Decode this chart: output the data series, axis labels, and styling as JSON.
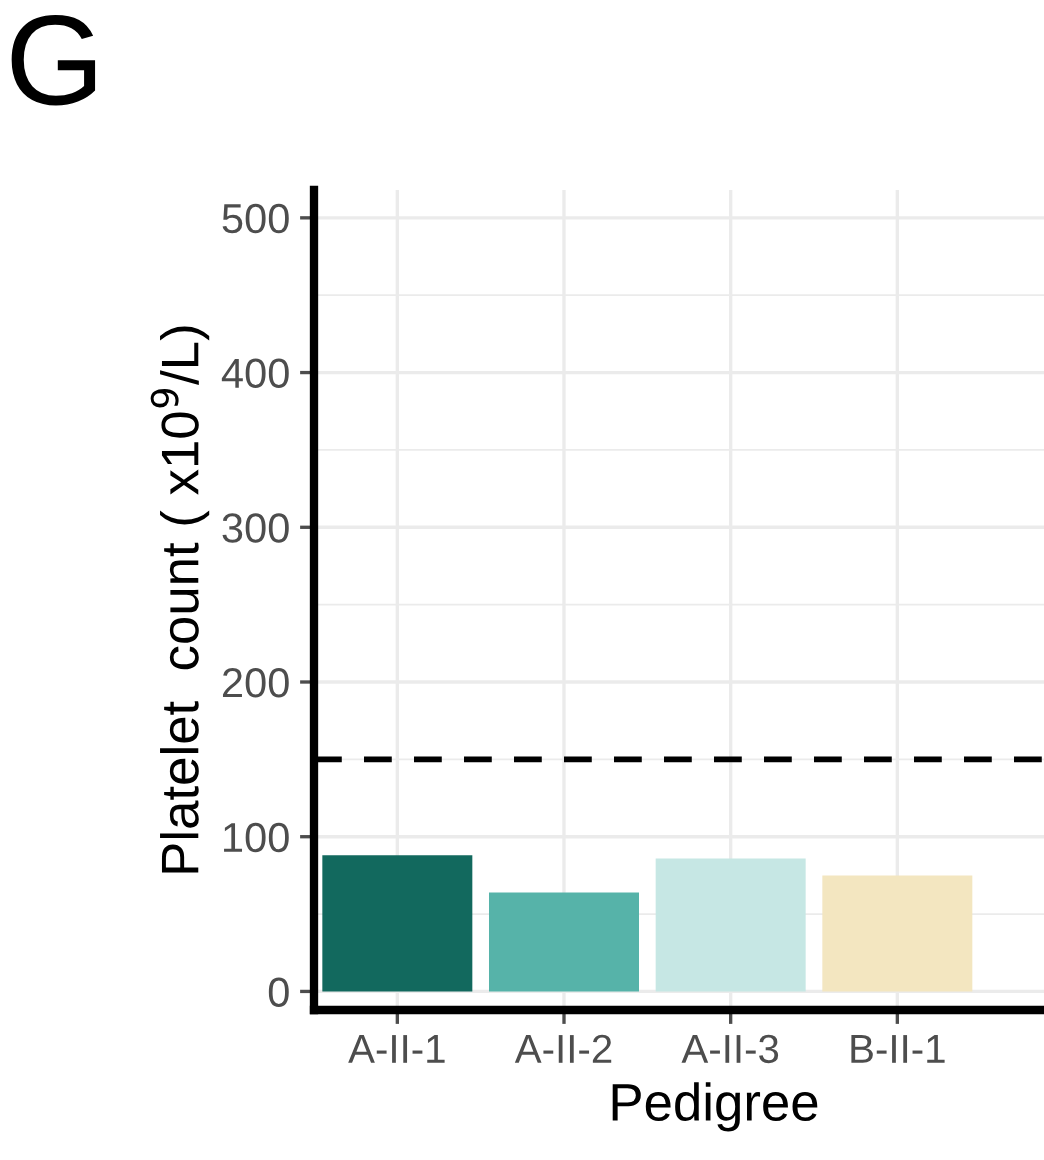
{
  "chart_data": {
    "type": "bar",
    "title": "G",
    "xlabel": "Pedigree",
    "ylabel": "Platelet  count ( x10$^{9}$/L)",
    "categories": [
      "A-II-1",
      "A-II-2",
      "A-II-3",
      "B-II-1"
    ],
    "values": [
      88,
      64,
      86,
      75
    ],
    "colors": [
      "#12695e",
      "#56b3a9",
      "#c6e7e4",
      "#f3e6c0"
    ],
    "ylim": [
      -12,
      518
    ],
    "yticks": [
      0,
      100,
      200,
      300,
      400,
      500
    ],
    "grid": true,
    "ref_lines": [
      {
        "axis": "y",
        "value": 150,
        "line_style": "dashed",
        "color": "#000000"
      }
    ]
  }
}
